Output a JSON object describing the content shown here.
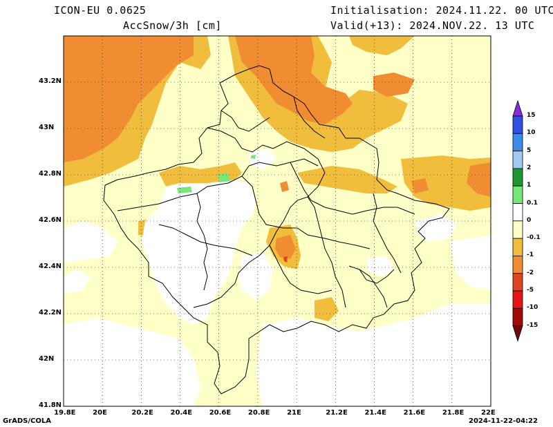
{
  "header": {
    "model": "ICON-EU 0.0625",
    "variable": "AccSnow/3h [cm]",
    "init": "Initialisation: 2024.11.22. 00 UTC",
    "valid": "Valid(+13): 2024.NOV.22. 13 UTC"
  },
  "axes": {
    "x_ticks": [
      "19.8E",
      "20E",
      "20.2E",
      "20.4E",
      "20.6E",
      "20.8E",
      "21E",
      "21.2E",
      "21.4E",
      "21.6E",
      "21.8E",
      "22E"
    ],
    "y_ticks": [
      "43.2N",
      "43N",
      "42.8N",
      "42.6N",
      "42.4N",
      "42.2N",
      "42N",
      "41.8N"
    ],
    "lon_range": [
      19.8,
      22.0
    ],
    "lat_range": [
      41.8,
      43.4
    ]
  },
  "colorbar": {
    "labels": [
      "15",
      "10",
      "5",
      "2",
      "1",
      "0.1",
      "0",
      "-0.1",
      "-1",
      "-2",
      "-5",
      "-10",
      "-15"
    ],
    "colors": [
      "#8a2be2",
      "#3050e0",
      "#3c8ce6",
      "#a0c8f0",
      "#1e9632",
      "#78e678",
      "#ffffff",
      "#ffffc8",
      "#f0be3c",
      "#f08c32",
      "#dc4620",
      "#e61414",
      "#a00a0a",
      "#6e0a0a"
    ]
  },
  "footer": {
    "left": "GrADS/COLA",
    "right": "2024-11-22-04:22"
  }
}
